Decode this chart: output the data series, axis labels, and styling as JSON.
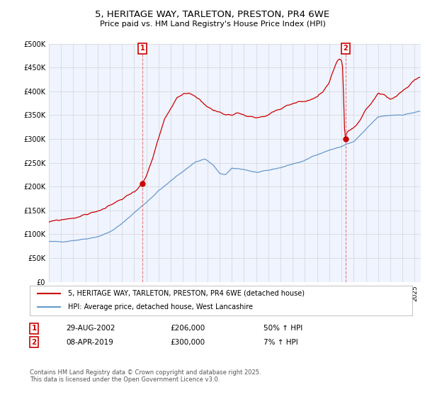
{
  "title": "5, HERITAGE WAY, TARLETON, PRESTON, PR4 6WE",
  "subtitle": "Price paid vs. HM Land Registry's House Price Index (HPI)",
  "legend_line1": "5, HERITAGE WAY, TARLETON, PRESTON, PR4 6WE (detached house)",
  "legend_line2": "HPI: Average price, detached house, West Lancashire",
  "purchase1_date": "29-AUG-2002",
  "purchase1_price": 206000,
  "purchase1_label": "50% ↑ HPI",
  "purchase2_date": "08-APR-2019",
  "purchase2_price": 300000,
  "purchase2_label": "7% ↑ HPI",
  "footer": "Contains HM Land Registry data © Crown copyright and database right 2025.\nThis data is licensed under the Open Government Licence v3.0.",
  "red_color": "#cc0000",
  "blue_color": "#6699cc",
  "vline_color": "#e08080",
  "marker_box_color": "#cc0000",
  "ylim": [
    0,
    500000
  ],
  "ytick_step": 50000,
  "xstart": 1995,
  "xend": 2025.5
}
